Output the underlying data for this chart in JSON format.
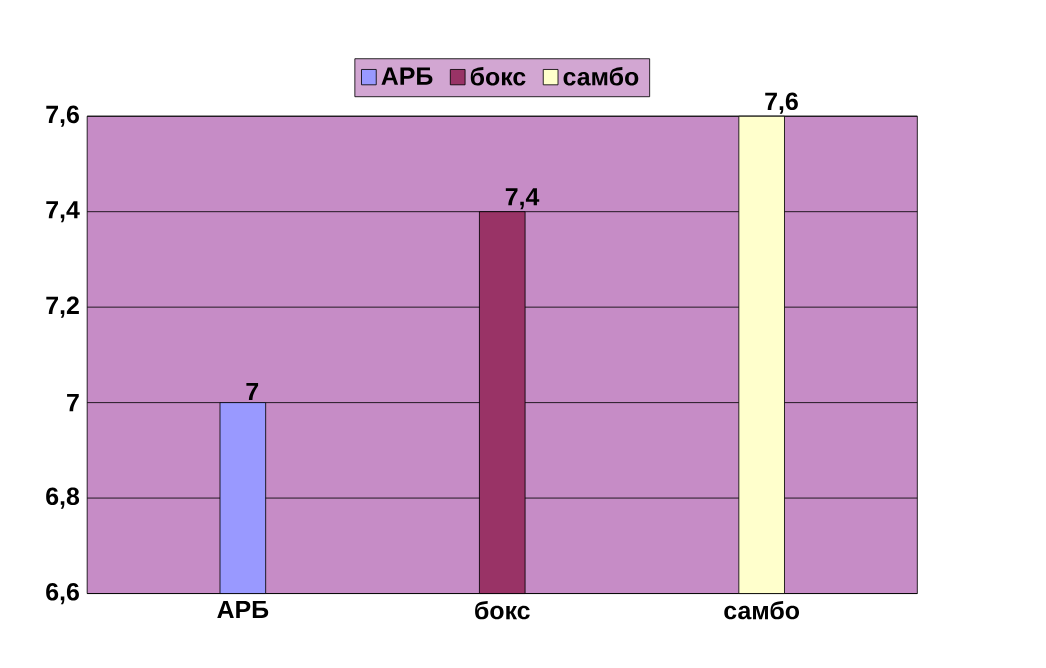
{
  "chart_data": {
    "type": "bar",
    "categories": [
      "АРБ",
      "бокс",
      "самбо"
    ],
    "series": [
      {
        "name": "АРБ",
        "color": "#9999ff",
        "values": [
          7,
          null,
          null
        ],
        "value_labels": [
          "7",
          null,
          null
        ]
      },
      {
        "name": "бокс",
        "color": "#993366",
        "values": [
          null,
          7.4,
          null
        ],
        "value_labels": [
          null,
          "7,4",
          null
        ]
      },
      {
        "name": "самбо",
        "color": "#ffffcc",
        "values": [
          null,
          null,
          7.6
        ],
        "value_labels": [
          null,
          null,
          "7,6"
        ]
      }
    ],
    "ylim": [
      6.6,
      7.6
    ],
    "yticks": [
      {
        "value": 6.6,
        "label": "6,6"
      },
      {
        "value": 6.8,
        "label": "6,8"
      },
      7,
      {
        "value": 7.2,
        "label": "7,2"
      },
      {
        "value": 7.4,
        "label": "7,4"
      },
      {
        "value": 7.6,
        "label": "7,6"
      }
    ],
    "grid": "y",
    "legend": "top"
  }
}
